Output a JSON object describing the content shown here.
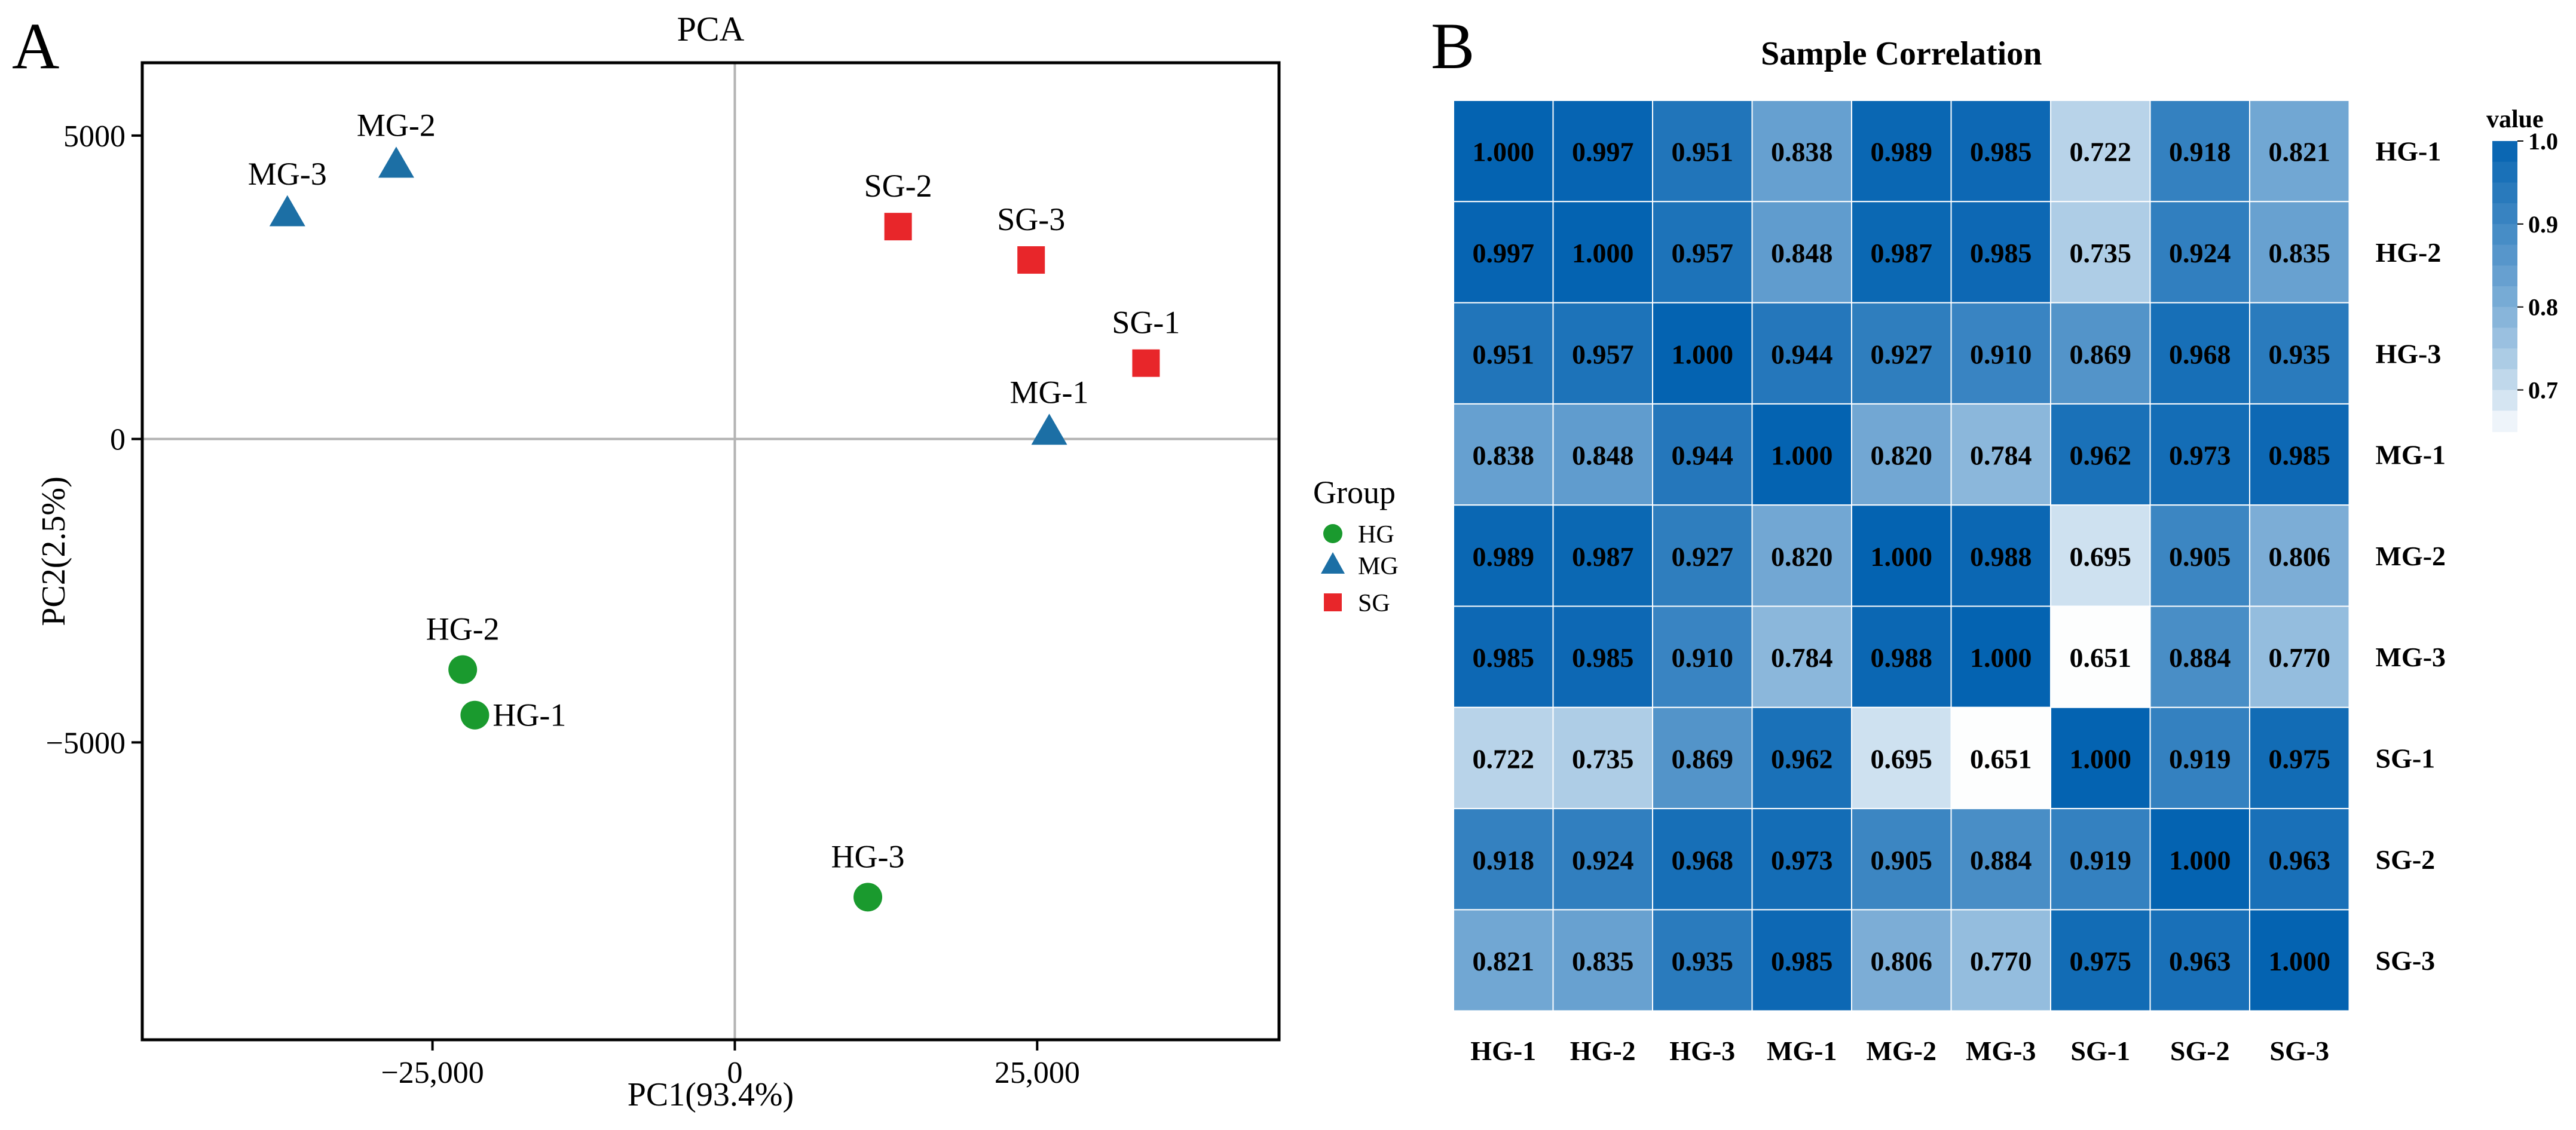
{
  "panel_labels": {
    "a": "A",
    "b": "B"
  },
  "colors": {
    "HG": "#1a9a2e",
    "MG": "#1c6fa5",
    "SG": "#e8262a",
    "axis": "#000000",
    "zero_line": "#b3b3b3",
    "heat_low": "#ffffff",
    "heat_high": "#0463b1"
  },
  "chart_data": [
    {
      "type": "scatter",
      "title": "PCA",
      "xlabel": "PC1(93.4%)",
      "ylabel": "PC2(2.5%)",
      "xlim": [
        -49000,
        45000
      ],
      "ylim": [
        -9900,
        6200
      ],
      "xticks": [
        -25000,
        0,
        25000
      ],
      "xtick_labels": [
        "−25,000",
        "0",
        "25,000"
      ],
      "yticks": [
        5000,
        0,
        -5000
      ],
      "ytick_labels": [
        "5000",
        "0",
        "−5000"
      ],
      "zero_lines": true,
      "legend": {
        "title": "Group",
        "position": "right",
        "entries": [
          "HG",
          "MG",
          "SG"
        ]
      },
      "series": [
        {
          "name": "HG",
          "marker": "circle",
          "points": [
            {
              "label": "HG-1",
              "x": -21500,
              "y": -4550
            },
            {
              "label": "HG-2",
              "x": -22500,
              "y": -3800
            },
            {
              "label": "HG-3",
              "x": 11000,
              "y": -7550
            }
          ]
        },
        {
          "name": "MG",
          "marker": "triangle",
          "points": [
            {
              "label": "MG-1",
              "x": 26000,
              "y": 100
            },
            {
              "label": "MG-2",
              "x": -28000,
              "y": 4500
            },
            {
              "label": "MG-3",
              "x": -37000,
              "y": 3700
            }
          ]
        },
        {
          "name": "SG",
          "marker": "square",
          "points": [
            {
              "label": "SG-1",
              "x": 34000,
              "y": 1250
            },
            {
              "label": "SG-2",
              "x": 13500,
              "y": 3500
            },
            {
              "label": "SG-3",
              "x": 24500,
              "y": 2950
            }
          ]
        }
      ]
    },
    {
      "type": "heatmap",
      "title": "Sample Correlation",
      "x_labels": [
        "HG-1",
        "HG-2",
        "HG-3",
        "MG-1",
        "MG-2",
        "MG-3",
        "SG-1",
        "SG-2",
        "SG-3"
      ],
      "y_labels": [
        "HG-1",
        "HG-2",
        "HG-3",
        "MG-1",
        "MG-2",
        "MG-3",
        "SG-1",
        "SG-2",
        "SG-3"
      ],
      "values": [
        [
          "1.000",
          "0.997",
          "0.951",
          "0.838",
          "0.989",
          "0.985",
          "0.722",
          "0.918",
          "0.821"
        ],
        [
          "0.997",
          "1.000",
          "0.957",
          "0.848",
          "0.987",
          "0.985",
          "0.735",
          "0.924",
          "0.835"
        ],
        [
          "0.951",
          "0.957",
          "1.000",
          "0.944",
          "0.927",
          "0.910",
          "0.869",
          "0.968",
          "0.935"
        ],
        [
          "0.838",
          "0.848",
          "0.944",
          "1.000",
          "0.820",
          "0.784",
          "0.962",
          "0.973",
          "0.985"
        ],
        [
          "0.989",
          "0.987",
          "0.927",
          "0.820",
          "1.000",
          "0.988",
          "0.695",
          "0.905",
          "0.806"
        ],
        [
          "0.985",
          "0.985",
          "0.910",
          "0.784",
          "0.988",
          "1.000",
          "0.651",
          "0.884",
          "0.770"
        ],
        [
          "0.722",
          "0.735",
          "0.869",
          "0.962",
          "0.695",
          "0.651",
          "1.000",
          "0.919",
          "0.975"
        ],
        [
          "0.918",
          "0.924",
          "0.968",
          "0.973",
          "0.905",
          "0.884",
          "0.919",
          "1.000",
          "0.963"
        ],
        [
          "0.821",
          "0.835",
          "0.935",
          "0.985",
          "0.806",
          "0.770",
          "0.975",
          "0.963",
          "1.000"
        ]
      ],
      "color_range": [
        0.65,
        1.0
      ],
      "colorbar": {
        "title": "value",
        "ticks": [
          1.0,
          0.9,
          0.8,
          0.7
        ],
        "tick_labels": [
          "1.0",
          "0.9",
          "0.8",
          "0.7"
        ],
        "position": "top-right"
      }
    }
  ]
}
